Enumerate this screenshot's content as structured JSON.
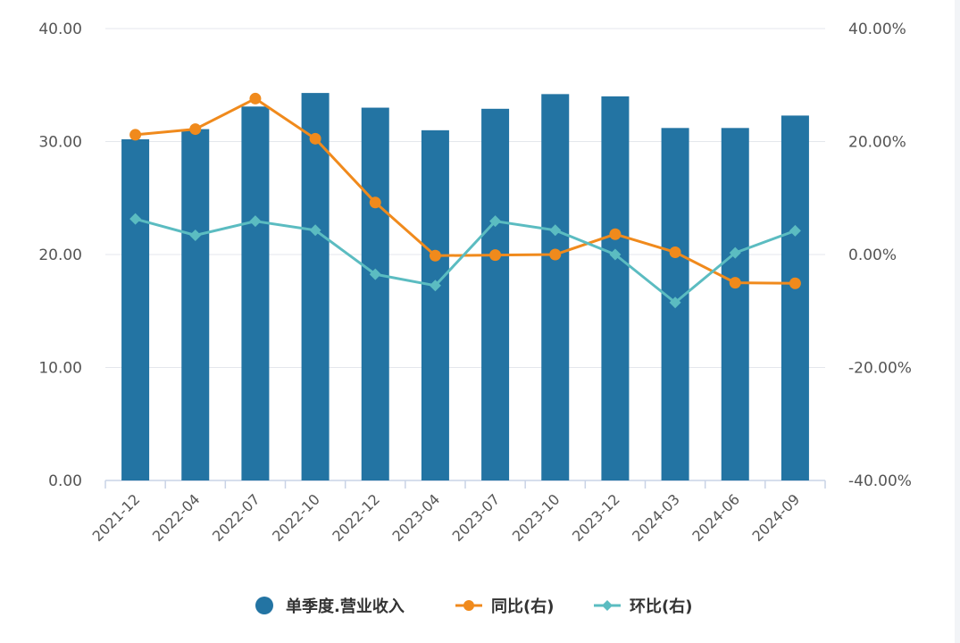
{
  "chart_data": {
    "type": "bar+line",
    "categories": [
      "2021-12",
      "2022-04",
      "2022-07",
      "2022-10",
      "2022-12",
      "2023-04",
      "2023-07",
      "2023-10",
      "2023-12",
      "2024-03",
      "2024-06",
      "2024-09"
    ],
    "series": [
      {
        "name": "单季度.营业收入",
        "type": "bar",
        "axis": "left",
        "color": "#2374a3",
        "values": [
          30.2,
          31.1,
          33.1,
          34.3,
          33.0,
          31.0,
          32.9,
          34.2,
          34.0,
          31.2,
          31.2,
          32.3
        ]
      },
      {
        "name": "同比(右)",
        "type": "line",
        "axis": "right",
        "marker": "circle",
        "color": "#f08a1c",
        "values": [
          21.2,
          22.2,
          27.6,
          20.5,
          9.2,
          -0.2,
          -0.1,
          0.0,
          3.6,
          0.4,
          -5.0,
          -5.1
        ]
      },
      {
        "name": "环比(右)",
        "type": "line",
        "axis": "right",
        "marker": "diamond",
        "color": "#5bbcc1",
        "values": [
          6.3,
          3.4,
          5.9,
          4.3,
          -3.5,
          -5.5,
          5.9,
          4.3,
          0.0,
          -8.5,
          0.3,
          4.2
        ]
      }
    ],
    "y_left": {
      "min": 0,
      "max": 40,
      "ticks": [
        "0.00",
        "10.00",
        "20.00",
        "30.00",
        "40.00"
      ]
    },
    "y_right": {
      "min": -40,
      "max": 40,
      "ticks": [
        "-40.00%",
        "-20.00%",
        "0.00%",
        "20.00%",
        "40.00%"
      ]
    },
    "grid": true,
    "legend_position": "bottom-center"
  }
}
